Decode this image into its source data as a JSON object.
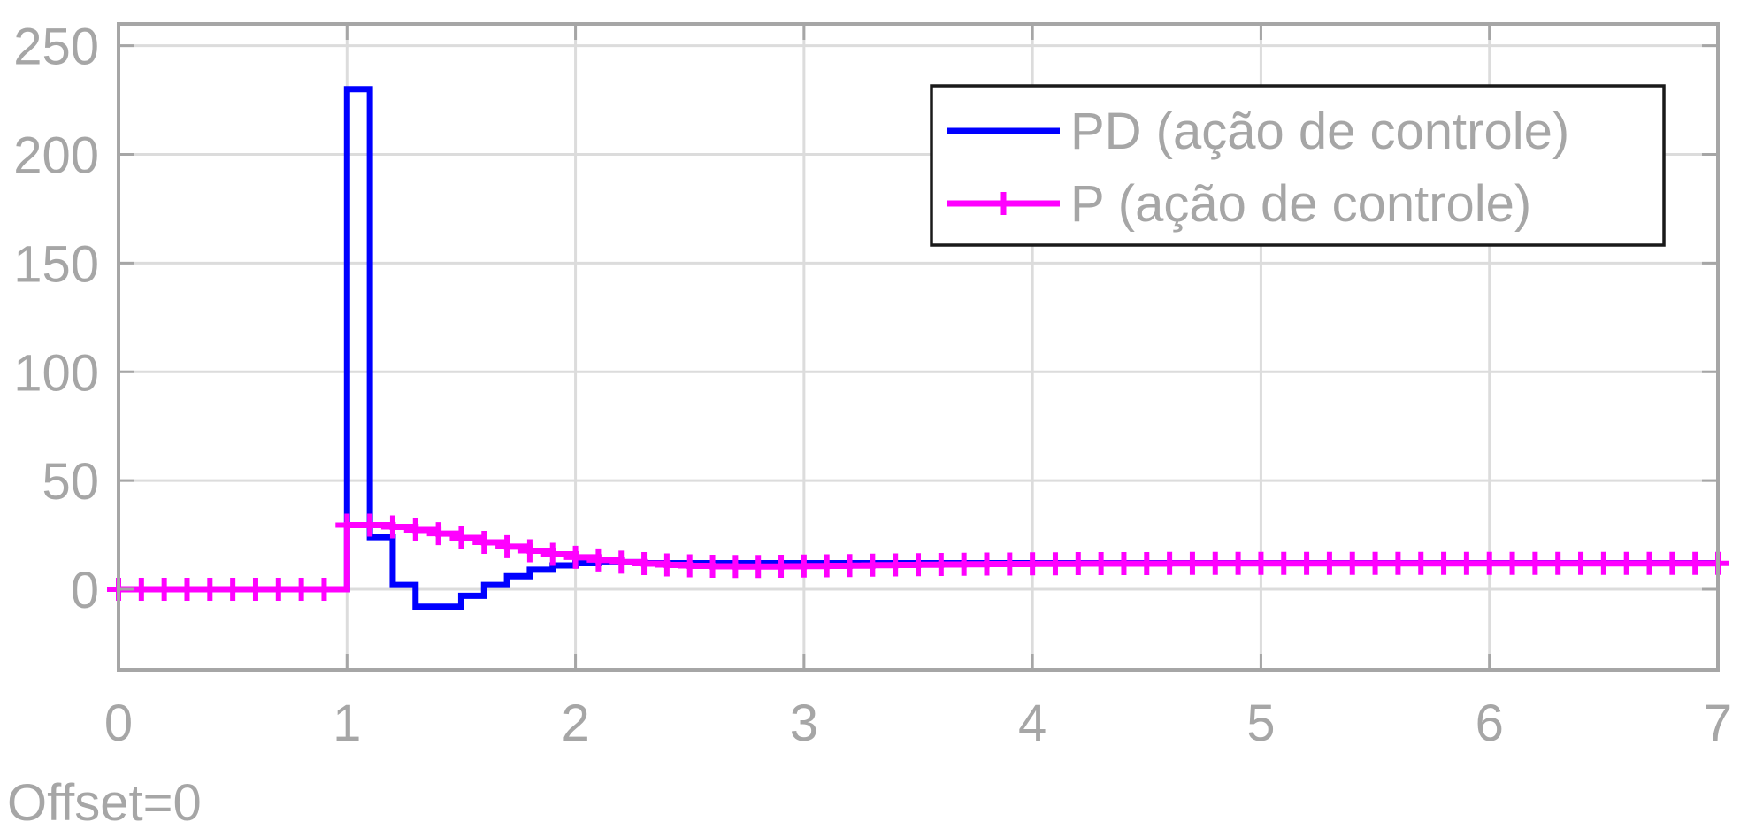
{
  "chart_data": {
    "type": "line",
    "title": "",
    "xlabel": "",
    "ylabel": "",
    "xlim": [
      0,
      7
    ],
    "ylim": [
      -37,
      260
    ],
    "x_ticks": [
      "0",
      "1",
      "2",
      "3",
      "4",
      "5",
      "6",
      "7"
    ],
    "y_ticks": [
      "0",
      "50",
      "100",
      "150",
      "200",
      "250"
    ],
    "grid": true,
    "legend_position": "top-right",
    "annotation": "Offset=0",
    "step_size": 0.1,
    "series": [
      {
        "name": "PD (ação de controle)",
        "color": "#0000ff",
        "marker": "none",
        "style": "stairs",
        "x": [
          0,
          0.1,
          0.2,
          0.3,
          0.4,
          0.5,
          0.6,
          0.7,
          0.8,
          0.9,
          1.0,
          1.1,
          1.2,
          1.3,
          1.4,
          1.5,
          1.6,
          1.7,
          1.8,
          1.9,
          2.0,
          2.1,
          2.2,
          2.3,
          2.4,
          2.5,
          2.6,
          2.7,
          2.8,
          2.9,
          3.0,
          3.5,
          4.0,
          4.5,
          5.0,
          5.5,
          6.0,
          6.5,
          7.0
        ],
        "values": [
          0,
          0,
          0,
          0,
          0,
          0,
          0,
          0,
          0,
          0,
          230,
          24,
          2,
          -8,
          -8,
          -3,
          2,
          6,
          9,
          11,
          12,
          12.5,
          12.5,
          12,
          12,
          12,
          12,
          12,
          12,
          12,
          12,
          12,
          12,
          12,
          12,
          12,
          12,
          12,
          12
        ]
      },
      {
        "name": "P (ação de controle)",
        "color": "#ff00ff",
        "marker": "+",
        "style": "stairs",
        "x": [
          0,
          0.1,
          0.2,
          0.3,
          0.4,
          0.5,
          0.6,
          0.7,
          0.8,
          0.9,
          1.0,
          1.1,
          1.2,
          1.3,
          1.4,
          1.5,
          1.6,
          1.7,
          1.8,
          1.9,
          2.0,
          2.1,
          2.2,
          2.3,
          2.4,
          2.5,
          2.6,
          2.7,
          2.8,
          2.9,
          3.0,
          3.1,
          3.2,
          3.3,
          3.4,
          3.5,
          3.6,
          3.7,
          3.8,
          3.9,
          4.0,
          4.1,
          4.2,
          4.3,
          4.4,
          4.5,
          4.6,
          4.7,
          4.8,
          4.9,
          5.0,
          5.1,
          5.2,
          5.3,
          5.4,
          5.5,
          5.6,
          5.7,
          5.8,
          5.9,
          6.0,
          6.1,
          6.2,
          6.3,
          6.4,
          6.5,
          6.6,
          6.7,
          6.8,
          6.9,
          7.0
        ],
        "values": [
          0,
          0,
          0,
          0,
          0,
          0,
          0,
          0,
          0,
          0,
          29.5,
          29.5,
          28.7,
          27.3,
          25.6,
          23.6,
          21.6,
          19.6,
          17.7,
          16.1,
          14.7,
          13.5,
          12.5,
          11.8,
          11.2,
          10.8,
          10.6,
          10.5,
          10.5,
          10.6,
          10.7,
          10.8,
          10.9,
          11.1,
          11.2,
          11.3,
          11.4,
          11.5,
          11.6,
          11.6,
          11.7,
          11.7,
          11.8,
          11.8,
          11.8,
          11.8,
          11.9,
          11.9,
          11.9,
          11.9,
          11.9,
          11.9,
          11.9,
          11.9,
          11.9,
          11.9,
          11.9,
          11.9,
          11.9,
          11.9,
          11.9,
          11.9,
          11.9,
          11.9,
          11.9,
          11.9,
          11.9,
          11.9,
          11.9,
          11.9,
          11.9
        ]
      }
    ]
  }
}
